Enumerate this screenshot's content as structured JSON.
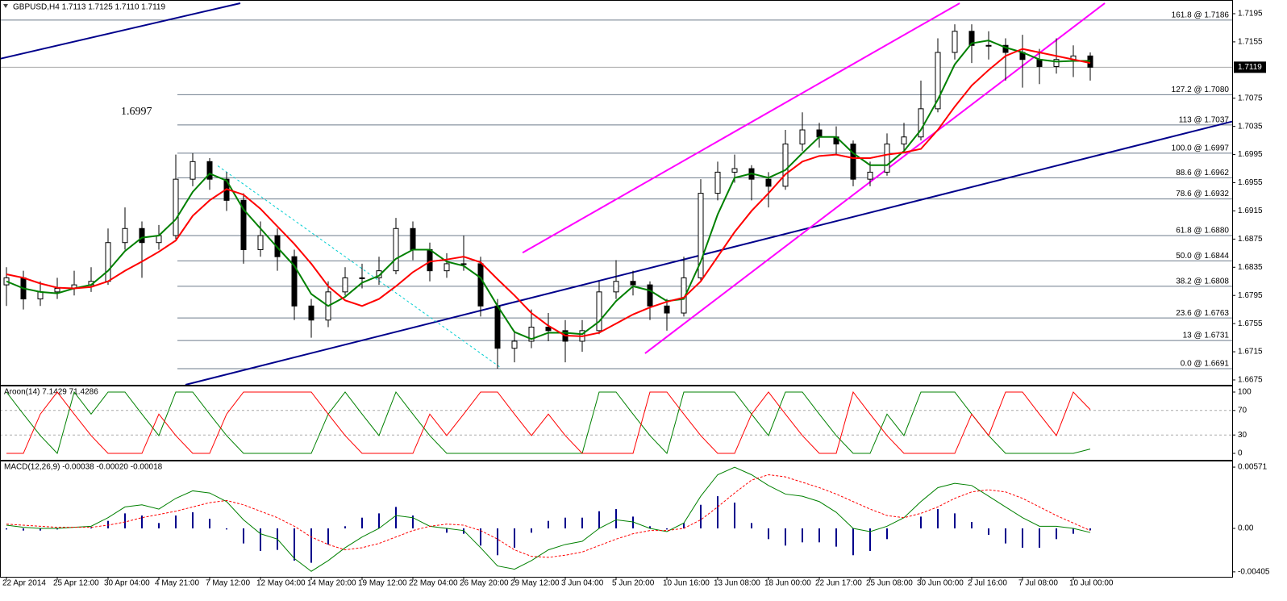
{
  "chart_data": [
    {
      "type": "candlestick",
      "title": "GBPUSD,H4  1.7113 1.7125 1.7110 1.7119",
      "annotation": "1.6997",
      "categories": [
        "22 Apr 2014",
        null,
        null,
        "25 Apr 12:00",
        null,
        null,
        "30 Apr 04:00",
        null,
        null,
        "4 May 21:00",
        null,
        null,
        "7 May 12:00",
        null,
        null,
        "12 May 04:00",
        null,
        null,
        "14 May 20:00",
        null,
        null,
        "19 May 12:00",
        null,
        null,
        "22 May 04:00",
        null,
        null,
        "26 May 20:00",
        null,
        null,
        "29 May 12:00",
        null,
        null,
        "3 Jun 04:00",
        null,
        null,
        "5 Jun 20:00",
        null,
        null,
        "10 Jun 16:00",
        null,
        null,
        "13 Jun 08:00",
        null,
        null,
        "18 Jun 00:00",
        null,
        null,
        "22 Jun 17:00",
        null,
        null,
        "25 Jun 08:00",
        null,
        null,
        "30 Jun 00:00",
        null,
        null,
        "2 Jul 16:00",
        null,
        null,
        "7 Jul 08:00",
        null,
        null,
        "10 Jul 00:00",
        null
      ],
      "candles": [
        [
          1.681,
          1.6835,
          1.678,
          1.682
        ],
        [
          1.682,
          1.683,
          1.6775,
          1.679
        ],
        [
          1.679,
          1.6815,
          1.678,
          1.68
        ],
        [
          1.68,
          1.682,
          1.679,
          1.6805
        ],
        [
          1.6805,
          1.683,
          1.6795,
          1.681
        ],
        [
          1.681,
          1.6835,
          1.68,
          1.6815
        ],
        [
          1.6815,
          1.689,
          1.681,
          1.687
        ],
        [
          1.687,
          1.692,
          1.686,
          1.689
        ],
        [
          1.689,
          1.69,
          1.682,
          1.687
        ],
        [
          1.687,
          1.6895,
          1.686,
          1.688
        ],
        [
          1.688,
          1.6995,
          1.6875,
          1.696
        ],
        [
          1.696,
          1.6997,
          1.695,
          1.6985
        ],
        [
          1.6985,
          1.699,
          1.6945,
          1.696
        ],
        [
          1.696,
          1.697,
          1.6915,
          1.693
        ],
        [
          1.693,
          1.694,
          1.684,
          1.686
        ],
        [
          1.686,
          1.69,
          1.685,
          1.688
        ],
        [
          1.688,
          1.689,
          1.683,
          1.685
        ],
        [
          1.685,
          1.686,
          1.676,
          1.678
        ],
        [
          1.678,
          1.679,
          1.6735,
          1.676
        ],
        [
          1.676,
          1.6815,
          1.675,
          1.68
        ],
        [
          1.68,
          1.6835,
          1.6795,
          1.682
        ],
        [
          1.682,
          1.684,
          1.6805,
          1.682
        ],
        [
          1.682,
          1.685,
          1.681,
          1.683
        ],
        [
          1.683,
          1.6905,
          1.6825,
          1.689
        ],
        [
          1.689,
          1.69,
          1.6845,
          1.686
        ],
        [
          1.686,
          1.687,
          1.6815,
          1.683
        ],
        [
          1.683,
          1.6855,
          1.682,
          1.684
        ],
        [
          1.684,
          1.688,
          1.683,
          1.684
        ],
        [
          1.684,
          1.685,
          1.6765,
          1.678
        ],
        [
          1.678,
          1.679,
          1.6691,
          1.672
        ],
        [
          1.672,
          1.6745,
          1.67,
          1.673
        ],
        [
          1.673,
          1.6775,
          1.672,
          1.675
        ],
        [
          1.675,
          1.677,
          1.673,
          1.6745
        ],
        [
          1.6745,
          1.676,
          1.67,
          1.673
        ],
        [
          1.673,
          1.676,
          1.6715,
          1.6745
        ],
        [
          1.6745,
          1.6815,
          1.674,
          1.68
        ],
        [
          1.68,
          1.6845,
          1.679,
          1.6815
        ],
        [
          1.6815,
          1.683,
          1.6795,
          1.681
        ],
        [
          1.681,
          1.6815,
          1.676,
          1.678
        ],
        [
          1.678,
          1.679,
          1.6745,
          1.677
        ],
        [
          1.677,
          1.685,
          1.6765,
          1.682
        ],
        [
          1.682,
          1.696,
          1.6815,
          1.694
        ],
        [
          1.694,
          1.6985,
          1.693,
          1.697
        ],
        [
          1.697,
          1.6995,
          1.6955,
          1.6975
        ],
        [
          1.6975,
          1.698,
          1.693,
          1.696
        ],
        [
          1.696,
          1.697,
          1.692,
          1.695
        ],
        [
          1.695,
          1.703,
          1.6945,
          1.701
        ],
        [
          1.701,
          1.7055,
          1.7,
          1.703
        ],
        [
          1.703,
          1.704,
          1.7005,
          1.702
        ],
        [
          1.702,
          1.7035,
          1.6995,
          1.701
        ],
        [
          1.701,
          1.7015,
          1.695,
          1.696
        ],
        [
          1.696,
          1.6985,
          1.695,
          1.697
        ],
        [
          1.697,
          1.7025,
          1.6965,
          1.701
        ],
        [
          1.701,
          1.704,
          1.7,
          1.702
        ],
        [
          1.702,
          1.71,
          1.7015,
          1.706
        ],
        [
          1.706,
          1.716,
          1.7055,
          1.714
        ],
        [
          1.714,
          1.718,
          1.713,
          1.717
        ],
        [
          1.717,
          1.718,
          1.7125,
          1.715
        ],
        [
          1.715,
          1.717,
          1.713,
          1.715
        ],
        [
          1.715,
          1.716,
          1.71,
          1.714
        ],
        [
          1.714,
          1.7165,
          1.709,
          1.713
        ],
        [
          1.713,
          1.7145,
          1.7095,
          1.712
        ],
        [
          1.712,
          1.716,
          1.711,
          1.713
        ],
        [
          1.713,
          1.715,
          1.7105,
          1.7135
        ],
        [
          1.7135,
          1.714,
          1.71,
          1.7119
        ]
      ],
      "series": [
        {
          "color": "#008000",
          "values": [
            1.6815,
            1.6805,
            1.68,
            1.6798,
            1.6805,
            1.681,
            1.683,
            1.6858,
            1.6877,
            1.688,
            1.6903,
            1.6942,
            1.6968,
            1.6958,
            1.6917,
            1.689,
            1.6863,
            1.6837,
            1.6797,
            1.678,
            1.6793,
            1.6813,
            1.6823,
            1.6847,
            1.686,
            1.686,
            1.6843,
            1.6837,
            1.682,
            1.678,
            1.6743,
            1.6733,
            1.6742,
            1.6742,
            1.674,
            1.6758,
            1.6787,
            1.6808,
            1.6802,
            1.6787,
            1.679,
            1.6843,
            1.691,
            1.6962,
            1.6968,
            1.6962,
            1.6973,
            1.6997,
            1.702,
            1.702,
            1.6997,
            1.698,
            1.698,
            1.7,
            1.703,
            1.7073,
            1.7123,
            1.7153,
            1.7157,
            1.7147,
            1.714,
            1.713,
            1.7127,
            1.7128,
            1.7128
          ]
        },
        {
          "color": "#ff0000",
          "values": [
            1.6825,
            1.682,
            1.6812,
            1.6806,
            1.6805,
            1.6807,
            1.6815,
            1.683,
            1.6843,
            1.6857,
            1.6873,
            1.6908,
            1.693,
            1.6946,
            1.6938,
            1.6918,
            1.6893,
            1.6868,
            1.684,
            1.6808,
            1.6788,
            1.678,
            1.679,
            1.6808,
            1.6828,
            1.6843,
            1.6846,
            1.685,
            1.6842,
            1.6818,
            1.6795,
            1.677,
            1.6752,
            1.6738,
            1.6737,
            1.6742,
            1.6755,
            1.6768,
            1.6778,
            1.6786,
            1.6792,
            1.6815,
            1.685,
            1.6885,
            1.6915,
            1.694,
            1.6967,
            1.6985,
            1.6993,
            1.6995,
            1.699,
            1.699,
            1.6995,
            1.6998,
            1.7003,
            1.703,
            1.7063,
            1.7093,
            1.7115,
            1.7135,
            1.7145,
            1.714,
            1.7135,
            1.713,
            1.7125
          ]
        }
      ],
      "ylim": [
        1.66681,
        1.72133
      ],
      "yticks": [
        1.7195,
        1.7155,
        1.7075,
        1.7035,
        1.6995,
        1.6955,
        1.6915,
        1.6875,
        1.6835,
        1.6795,
        1.6755,
        1.6715,
        1.6675
      ],
      "levels": [
        {
          "value": 1.7186,
          "label": "161.8 @ 1.7186"
        },
        {
          "value": 1.708,
          "label": "127.2 @ 1.7080"
        },
        {
          "value": 1.7037,
          "label": "113 @ 1.7037"
        },
        {
          "value": 1.6997,
          "label": "100.0 @ 1.6997"
        },
        {
          "value": 1.6962,
          "label": "88.6 @ 1.6962"
        },
        {
          "value": 1.6932,
          "label": "78.6 @ 1.6932"
        },
        {
          "value": 1.688,
          "label": "61.8 @ 1.6880"
        },
        {
          "value": 1.6844,
          "label": "50.0 @ 1.6844"
        },
        {
          "value": 1.6808,
          "label": "38.2 @ 1.6808"
        },
        {
          "value": 1.6763,
          "label": "23.6 @ 1.6763"
        },
        {
          "value": 1.6731,
          "label": "13 @ 1.6731"
        },
        {
          "value": 1.6691,
          "label": "0.0 @ 1.6691"
        }
      ],
      "last_price": 1.7119,
      "trendlines": [
        {
          "color": "#00008b",
          "x": [
            -0.38,
            13.81
          ],
          "values": [
            1.7131,
            1.72099
          ]
        },
        {
          "color": "#00008b",
          "x": [
            10.57,
            72.38
          ],
          "values": [
            1.66681,
            1.70419
          ]
        },
        {
          "color": "#ff00ff",
          "x": [
            30.48,
            56.29
          ],
          "values": [
            1.68556,
            1.72099
          ]
        },
        {
          "color": "#ff00ff",
          "x": [
            37.71,
            64.86
          ],
          "values": [
            1.67127,
            1.72099
          ]
        },
        {
          "color": "#00ced1",
          "dash": true,
          "x": [
            12.48,
            29.14
          ],
          "values": [
            1.6979,
            1.66933
          ]
        }
      ]
    },
    {
      "type": "line",
      "title": "Aroon(14) 7.1429 71.4286",
      "series": [
        {
          "color": "#008000",
          "values": [
            100,
            64,
            29,
            0,
            100,
            64,
            100,
            100,
            64,
            29,
            100,
            100,
            64,
            29,
            0,
            0,
            0,
            0,
            0,
            64,
            100,
            64,
            29,
            100,
            64,
            29,
            0,
            0,
            0,
            0,
            0,
            0,
            0,
            0,
            0,
            100,
            100,
            64,
            29,
            0,
            100,
            100,
            100,
            100,
            64,
            29,
            100,
            100,
            64,
            29,
            0,
            0,
            64,
            29,
            100,
            100,
            100,
            64,
            29,
            0,
            0,
            0,
            0,
            0,
            7.1429
          ]
        },
        {
          "color": "#ff0000",
          "values": [
            0,
            0,
            64,
            100,
            64,
            29,
            0,
            0,
            0,
            64,
            29,
            0,
            0,
            64,
            100,
            100,
            100,
            100,
            100,
            64,
            29,
            0,
            0,
            0,
            0,
            64,
            29,
            64,
            100,
            100,
            64,
            29,
            64,
            29,
            0,
            0,
            0,
            0,
            100,
            100,
            64,
            29,
            0,
            0,
            64,
            100,
            64,
            29,
            0,
            0,
            100,
            64,
            29,
            0,
            0,
            0,
            0,
            64,
            29,
            100,
            100,
            64,
            29,
            100,
            71.4286
          ]
        }
      ],
      "ylim": [
        -10.5,
        109.2
      ],
      "yticks": [
        100,
        70,
        30,
        0
      ],
      "dashed_levels": [
        70,
        30
      ]
    },
    {
      "type": "macd",
      "title": "MACD(12,26,9) -0.00038 -0.00020 -0.00018",
      "histogram": {
        "color": "#00008b",
        "values": [
          -0.0001,
          -0.0002,
          -0.0002,
          -0.0001,
          0,
          0.0001,
          0.0007,
          0.0014,
          0.0012,
          0.0005,
          0.0012,
          0.0015,
          0.0009,
          -0.0001,
          -0.0014,
          -0.0021,
          -0.002,
          -0.003,
          -0.0032,
          -0.0015,
          0.0002,
          0.001,
          0.0014,
          0.002,
          0.0012,
          0,
          -0.0004,
          -0.0005,
          -0.0016,
          -0.0025,
          -0.0018,
          -0.0004,
          0.0007,
          0.001,
          0.001,
          0.0016,
          0.0018,
          0.0011,
          0.0002,
          -0.0001,
          0.0005,
          0.0022,
          0.003,
          0.0024,
          0.0005,
          -0.001,
          -0.0016,
          -0.0013,
          -0.0013,
          -0.0017,
          -0.0025,
          -0.0021,
          -0.001,
          0,
          0.0011,
          0.0018,
          0.0014,
          0.0006,
          -0.0006,
          -0.0014,
          -0.0018,
          -0.0018,
          -0.001,
          -0.0005,
          -0.00018
        ]
      },
      "series": [
        {
          "color": "#008000",
          "values": [
            0.0003,
            0.0001,
            0,
            0,
            0.0001,
            0.0002,
            0.001,
            0.002,
            0.0022,
            0.0018,
            0.0028,
            0.0035,
            0.0033,
            0.0025,
            0.0008,
            -0.0005,
            -0.001,
            -0.0028,
            -0.004,
            -0.003,
            -0.0018,
            -0.0008,
            0,
            0.0012,
            0.001,
            0.0002,
            0,
            -0.0002,
            -0.0018,
            -0.0035,
            -0.0038,
            -0.003,
            -0.002,
            -0.0015,
            -0.0012,
            0,
            0.0008,
            0.0006,
            0,
            -0.0003,
            0.0005,
            0.003,
            0.005,
            0.0057,
            0.005,
            0.004,
            0.0032,
            0.003,
            0.0025,
            0.0015,
            0,
            -0.0003,
            0.0002,
            0.001,
            0.0025,
            0.0038,
            0.0042,
            0.004,
            0.003,
            0.002,
            0.001,
            0.0002,
            0.0002,
            0,
            -0.00038
          ]
        },
        {
          "color": "#ff0000",
          "dash": true,
          "values": [
            0.0004,
            0.0003,
            0.0002,
            0.0001,
            0.0001,
            0.0001,
            0.0003,
            0.0006,
            0.001,
            0.0013,
            0.0016,
            0.002,
            0.0024,
            0.0026,
            0.0022,
            0.0016,
            0.001,
            0.0002,
            -0.0008,
            -0.0015,
            -0.002,
            -0.0018,
            -0.0014,
            -0.0008,
            -0.0002,
            0.0002,
            0.0004,
            0.0003,
            -0.0002,
            -0.001,
            -0.002,
            -0.0026,
            -0.0027,
            -0.0025,
            -0.0022,
            -0.0016,
            -0.001,
            -0.0005,
            -0.0002,
            -0.0002,
            0,
            0.0008,
            0.002,
            0.0033,
            0.0045,
            0.005,
            0.0048,
            0.0043,
            0.0038,
            0.0032,
            0.0025,
            0.0018,
            0.0012,
            0.001,
            0.0014,
            0.002,
            0.0028,
            0.0034,
            0.0036,
            0.0034,
            0.0028,
            0.002,
            0.0012,
            0.0005,
            -0.0002
          ]
        }
      ],
      "ylim": [
        -0.00451,
        0.00624
      ],
      "yticks": [
        0.00571,
        {
          "value": 0,
          "label": "0.00"
        },
        -0.00405
      ]
    }
  ]
}
